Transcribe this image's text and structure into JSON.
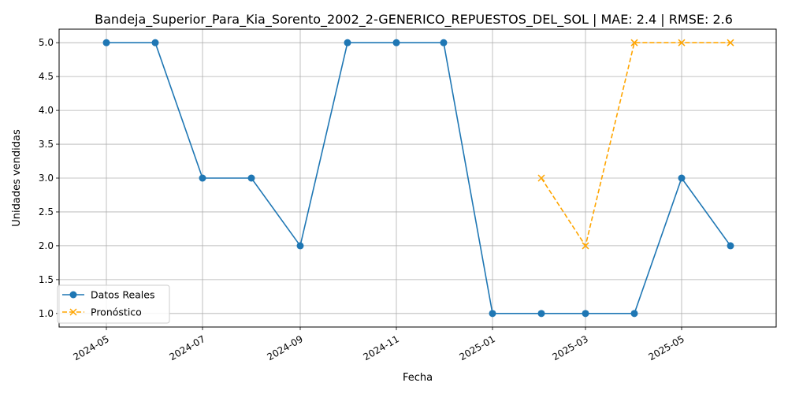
{
  "chart_data": {
    "type": "line",
    "title": "Bandeja_Superior_Para_Kia_Sorento_2002_2-GENERICO_REPUESTOS_DEL_SOL | MAE: 2.4 | RMSE: 2.6",
    "xlabel": "Fecha",
    "ylabel": "Unidades vendidas",
    "x_ticks": [
      "2024-05",
      "2024-07",
      "2024-09",
      "2024-11",
      "2025-01",
      "2025-03",
      "2025-05"
    ],
    "y_ticks": [
      "1.0",
      "1.5",
      "2.0",
      "2.5",
      "3.0",
      "3.5",
      "4.0",
      "4.5",
      "5.0"
    ],
    "ylim": [
      0.8,
      5.2
    ],
    "xlim": [
      "2024-04-01",
      "2025-06-30"
    ],
    "grid": true,
    "legend_position": "lower-left",
    "series": [
      {
        "name": "Datos Reales",
        "color": "#1f77b4",
        "style": "solid",
        "marker": "circle",
        "x": [
          "2024-05-01",
          "2024-06-01",
          "2024-07-01",
          "2024-08-01",
          "2024-09-01",
          "2024-10-01",
          "2024-11-01",
          "2024-12-01",
          "2025-01-01",
          "2025-02-01",
          "2025-03-01",
          "2025-04-01",
          "2025-05-01",
          "2025-06-01"
        ],
        "values": [
          5,
          5,
          3,
          3,
          2,
          5,
          5,
          5,
          1,
          1,
          1,
          1,
          3,
          2
        ]
      },
      {
        "name": "Pronóstico",
        "color": "#ffa500",
        "style": "dashed",
        "marker": "x",
        "x": [
          "2025-02-01",
          "2025-03-01",
          "2025-04-01",
          "2025-05-01",
          "2025-06-01"
        ],
        "values": [
          3,
          2,
          5,
          5,
          5
        ]
      }
    ]
  }
}
